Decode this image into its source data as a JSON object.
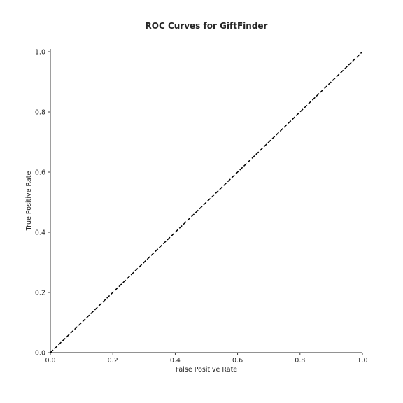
{
  "chart_data": {
    "type": "line",
    "title": "ROC Curves for GiftFinder",
    "xlabel": "False Positive Rate",
    "ylabel": "True Positive Rate",
    "xlim": [
      0.0,
      1.0
    ],
    "ylim": [
      0.0,
      1.0
    ],
    "xticks": [
      "0.0",
      "0.2",
      "0.4",
      "0.6",
      "0.8",
      "1.0"
    ],
    "yticks": [
      "0.0",
      "0.2",
      "0.4",
      "0.6",
      "0.8",
      "1.0"
    ],
    "grid": false,
    "series": [
      {
        "style": "dashed",
        "color": "#000000",
        "x": [
          0.0,
          1.0
        ],
        "y": [
          0.0,
          1.0
        ]
      }
    ]
  }
}
